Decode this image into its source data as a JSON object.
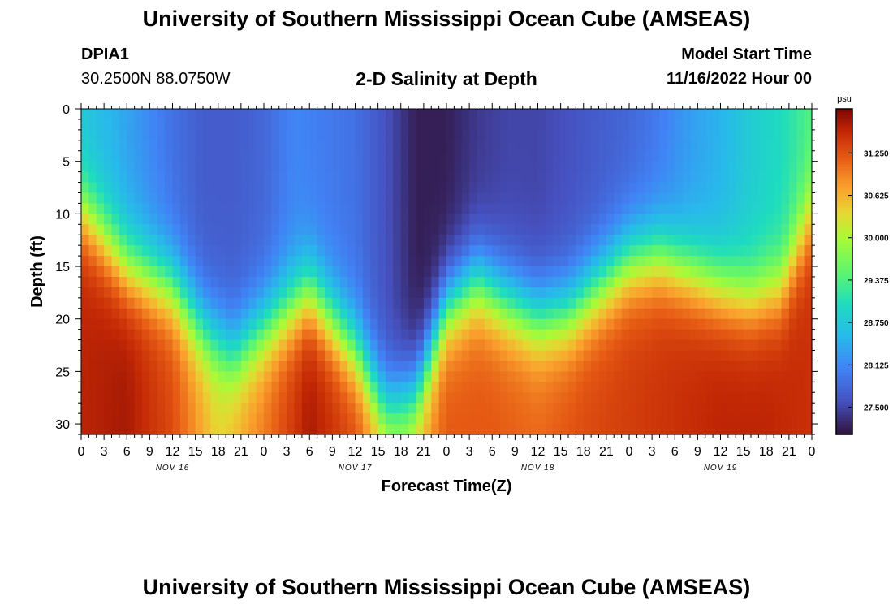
{
  "header": {
    "title": "University of Southern Mississippi Ocean Cube (AMSEAS)",
    "station_id": "DPIA1",
    "station_coords": "30.2500N  88.0750W",
    "plot_title": "2-D Salinity at Depth",
    "model_start_label": "Model Start Time",
    "model_start_value": "11/16/2022 Hour 00"
  },
  "footer": {
    "title": "University of Southern Mississippi Ocean Cube (AMSEAS)"
  },
  "chart_data": {
    "type": "heatmap",
    "title": "2-D Salinity at Depth",
    "xlabel": "Forecast Time(Z)",
    "ylabel": "Depth (ft)",
    "x_tick_labels": [
      "0",
      "3",
      "6",
      "9",
      "12",
      "15",
      "18",
      "21",
      "0",
      "3",
      "6",
      "9",
      "12",
      "15",
      "18",
      "21",
      "0",
      "3",
      "6",
      "9",
      "12",
      "15",
      "18",
      "21",
      "0",
      "3",
      "6",
      "9",
      "12",
      "15",
      "18",
      "21",
      "0"
    ],
    "x_hours_range": [
      0,
      96
    ],
    "day_labels": [
      {
        "text": "NOV 16",
        "hour": 12
      },
      {
        "text": "NOV 17",
        "hour": 36
      },
      {
        "text": "NOV 18",
        "hour": 60
      },
      {
        "text": "NOV 19",
        "hour": 84
      }
    ],
    "y_ticks": [
      0,
      5,
      10,
      15,
      20,
      25,
      30
    ],
    "ylim": [
      0,
      31
    ],
    "colorbar": {
      "unit": "psu",
      "range": [
        27.1,
        31.9
      ],
      "ticks": [
        "31.250",
        "30.625",
        "30.000",
        "29.375",
        "28.750",
        "28.125",
        "27.500"
      ],
      "tick_values": [
        31.25,
        30.625,
        30.0,
        29.375,
        28.75,
        28.125,
        27.5
      ]
    },
    "halocline_depth_ft": {
      "hours": [
        0,
        6,
        12,
        16,
        20,
        24,
        30,
        36,
        40,
        44,
        48,
        52,
        56,
        60,
        64,
        68,
        72,
        76,
        80,
        84,
        88,
        92,
        96
      ],
      "values": [
        9.5,
        15,
        17,
        21,
        23.5,
        21,
        17.5,
        23,
        28.5,
        27,
        19,
        16.5,
        18.5,
        20,
        19.5,
        17,
        14.5,
        14,
        15.5,
        17,
        18,
        17,
        10
      ]
    },
    "surface_layer_salinity_psu": {
      "hours": [
        0,
        4,
        8,
        12,
        16,
        20,
        24,
        28,
        32,
        36,
        40,
        44,
        48,
        52,
        56,
        60,
        64,
        68,
        72,
        76,
        80,
        84,
        88,
        92,
        96
      ],
      "values": [
        28.7,
        28.5,
        28.2,
        27.9,
        27.7,
        27.7,
        27.8,
        28.1,
        28.0,
        27.9,
        27.6,
        27.2,
        27.2,
        27.4,
        27.5,
        27.5,
        27.6,
        27.7,
        27.8,
        28.0,
        28.3,
        28.5,
        28.8,
        29.0,
        29.4
      ]
    },
    "bottom_layer_salinity_psu": {
      "hours": [
        0,
        6,
        12,
        18,
        24,
        30,
        36,
        42,
        48,
        54,
        60,
        66,
        72,
        78,
        84,
        90,
        96
      ],
      "values": [
        31.6,
        31.7,
        31.3,
        30.4,
        31.0,
        31.7,
        31.3,
        30.3,
        31.2,
        31.2,
        31.1,
        31.3,
        31.4,
        31.5,
        31.6,
        31.6,
        31.5
      ]
    }
  }
}
